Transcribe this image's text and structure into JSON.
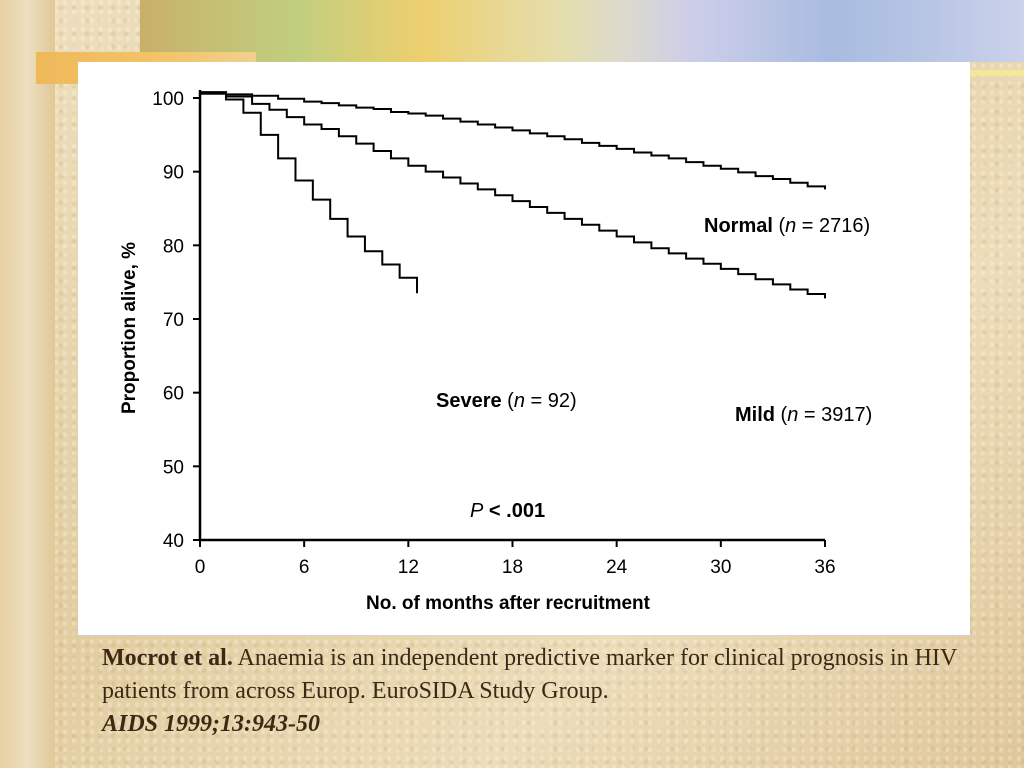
{
  "caption": {
    "author": "Mocrot et al.",
    "text": " Anaemia is an independent predictive marker for clinical prognosis in HIV patients from across Europ. EuroSIDA Study Group.",
    "citation": "AIDS 1999;13:943-50"
  },
  "chart_data": {
    "type": "line",
    "title": "",
    "xlabel": "No. of months after recruitment",
    "ylabel": "Proportion alive, %",
    "xlim": [
      0,
      36
    ],
    "ylim": [
      40,
      100
    ],
    "xticks": [
      "0",
      "6",
      "12",
      "18",
      "24",
      "30",
      "36"
    ],
    "yticks": [
      "40",
      "50",
      "60",
      "70",
      "80",
      "90",
      "100"
    ],
    "step": true,
    "annotation_p": {
      "symbol": "P",
      "text": " < .001"
    },
    "series": [
      {
        "name": "Normal",
        "label_name": "Normal",
        "label_open": " (",
        "label_n_symbol": "n",
        "label_n_value": " = 2716)",
        "color": "#000000",
        "x": [
          0,
          1.5,
          3,
          4.5,
          6,
          7,
          8,
          9,
          10,
          11,
          12,
          13,
          14,
          15,
          16,
          17,
          18,
          19,
          20,
          21,
          22,
          23,
          24,
          25,
          26,
          27,
          28,
          29,
          30,
          31,
          32,
          33,
          34,
          35,
          36
        ],
        "y": [
          100.8,
          100.5,
          100.3,
          99.9,
          99.5,
          99.3,
          99.0,
          98.7,
          98.5,
          98.1,
          97.9,
          97.6,
          97.2,
          96.8,
          96.4,
          96.0,
          95.6,
          95.2,
          94.8,
          94.4,
          93.9,
          93.5,
          93.1,
          92.6,
          92.2,
          91.8,
          91.3,
          90.8,
          90.4,
          89.9,
          89.4,
          89.0,
          88.5,
          88.0,
          87.6
        ]
      },
      {
        "name": "Mild",
        "label_name": "Mild",
        "label_open": " (",
        "label_n_symbol": "n",
        "label_n_value": " = 3917)",
        "color": "#000000",
        "x": [
          0,
          1.5,
          3,
          4,
          5,
          6,
          7,
          8,
          9,
          10,
          11,
          12,
          13,
          14,
          15,
          16,
          17,
          18,
          19,
          20,
          21,
          22,
          23,
          24,
          25,
          26,
          27,
          28,
          29,
          30,
          31,
          32,
          33,
          34,
          35,
          36
        ],
        "y": [
          100.6,
          100.2,
          99.2,
          98.4,
          97.4,
          96.4,
          95.8,
          94.8,
          93.8,
          92.8,
          91.8,
          90.8,
          90.0,
          89.2,
          88.4,
          87.6,
          86.8,
          86.0,
          85.2,
          84.4,
          83.6,
          82.8,
          82.0,
          81.2,
          80.4,
          79.6,
          78.9,
          78.2,
          77.5,
          76.8,
          76.1,
          75.4,
          74.7,
          74.0,
          73.4,
          72.8
        ]
      },
      {
        "name": "Severe",
        "label_name": "Severe",
        "label_open": " (",
        "label_n_symbol": "n",
        "label_n_value": " = 92)",
        "color": "#000000",
        "x": [
          0,
          1.5,
          2.5,
          3.5,
          4.5,
          5.5,
          6.5,
          7.5,
          8.5,
          9.5,
          10.5,
          11.5,
          12.5
        ],
        "y": [
          100.6,
          99.8,
          98.0,
          95.0,
          91.8,
          88.8,
          86.2,
          83.6,
          81.2,
          79.2,
          77.4,
          75.6,
          73.5
        ]
      }
    ]
  }
}
